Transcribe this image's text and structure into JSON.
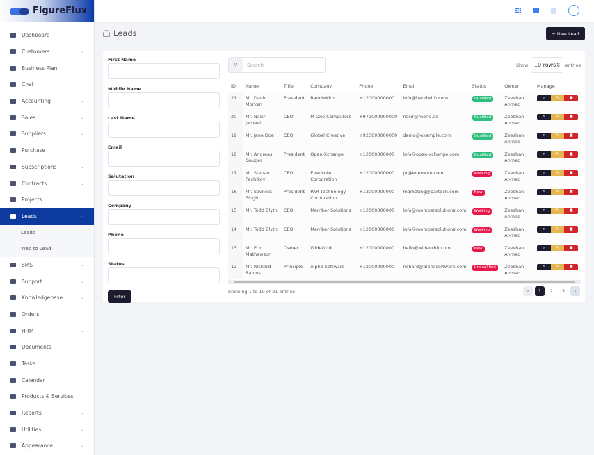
{
  "brand": "FigureFlux",
  "sidebar": {
    "items": [
      {
        "label": "Dashboard",
        "chev": false
      },
      {
        "label": "Customers",
        "chev": true
      },
      {
        "label": "Business Plan",
        "chev": true
      },
      {
        "label": "Chat",
        "chev": false
      },
      {
        "label": "Accounting",
        "chev": true
      },
      {
        "label": "Sales",
        "chev": true
      },
      {
        "label": "Suppliers",
        "chev": true
      },
      {
        "label": "Purchase",
        "chev": true
      },
      {
        "label": "Subscriptions",
        "chev": true
      },
      {
        "label": "Contracts",
        "chev": true
      },
      {
        "label": "Projects",
        "chev": false
      },
      {
        "label": "Leads",
        "chev": true,
        "active": true,
        "sub": [
          "Leads",
          "Web to Lead"
        ]
      },
      {
        "label": "SMS",
        "chev": true
      },
      {
        "label": "Support",
        "chev": true
      },
      {
        "label": "Knowledgebase",
        "chev": true
      },
      {
        "label": "Orders",
        "chev": true
      },
      {
        "label": "HRM",
        "chev": true
      },
      {
        "label": "Documents",
        "chev": false
      },
      {
        "label": "Tasks",
        "chev": false
      },
      {
        "label": "Calendar",
        "chev": false
      },
      {
        "label": "Products & Services",
        "chev": true
      },
      {
        "label": "Reports",
        "chev": true
      },
      {
        "label": "Utilities",
        "chev": true
      },
      {
        "label": "Appearance",
        "chev": true
      }
    ]
  },
  "page": {
    "title": "Leads",
    "new_button": "+ New Lead"
  },
  "filter": {
    "fields": [
      "First Name",
      "Middle Name",
      "Last Name",
      "Email",
      "Salutation",
      "Company",
      "Phone",
      "Status"
    ],
    "button": "Filter"
  },
  "table": {
    "search_placeholder": "Search",
    "show_label": "Show",
    "rows_value": "10 rows",
    "entries_label": "entries",
    "columns": [
      "ID",
      "Name",
      "Title",
      "Company",
      "Phone",
      "Email",
      "Status",
      "Owner",
      "Manage"
    ],
    "rows": [
      [
        "21",
        "Mr. David Morken",
        "President",
        "Bandwidth",
        "+12000000000",
        "info@bandwith.com",
        "Qualified",
        "Zeeshan Ahmad"
      ],
      [
        "20",
        "Mr. Nasir Jameel",
        "CEO",
        "M One Computers",
        "+972000000000",
        "nasir@mone.ae",
        "Qualified",
        "Zeeshan Ahmad"
      ],
      [
        "19",
        "Mr. Jane Doe",
        "CEO",
        "Global Creative",
        "+923000000000",
        "demo@example.com",
        "Qualified",
        "Zeeshan Ahmad"
      ],
      [
        "18",
        "Mr. Andreas Gauger",
        "President",
        "Open-Xchange",
        "+12000000000",
        "info@open-xchange.com",
        "Qualified",
        "Zeeshan Ahmad"
      ],
      [
        "17",
        "Mr. Stepan Pachikov",
        "CEO",
        "EverNote Corporation",
        "+12000000000",
        "pr@evernote.com",
        "Working",
        "Zeeshan Ahmad"
      ],
      [
        "16",
        "Mr. Savneet Singh",
        "President",
        "PAR Technology Corporation",
        "+12000000000",
        "marketing@partech.com",
        "New",
        "Zeeshan Ahmad"
      ],
      [
        "15",
        "Mr. Todd Blyth",
        "CEO",
        "Member Solutions",
        "+12000000000",
        "info@membersolutions.com",
        "Working",
        "Zeeshan Ahmad"
      ],
      [
        "14",
        "Mr. Todd Blyth",
        "CEO",
        "Member Solutions",
        "+12000000000",
        "info@membersolutions.com",
        "Working",
        "Zeeshan Ahmad"
      ],
      [
        "13",
        "Mr. Eric Mathewson",
        "Owner",
        "WideOrbit",
        "+12000000000",
        "hello@wideorbit.com",
        "New",
        "Zeeshan Ahmad"
      ],
      [
        "12",
        "Mr. Richard Rabins",
        "Principle",
        "Alpha Software",
        "+12000000000",
        "richard@alphasoftware.com",
        "Unqualified",
        "Zeeshan Ahmad"
      ]
    ],
    "status_colors": {
      "Qualified": "#2fbf7f",
      "Working": "#e8194a",
      "New": "#e8194a",
      "Unqualified": "#e8194a"
    },
    "info": "Showing 1 to 10 of 21 entries",
    "pages": [
      "1",
      "2",
      "3"
    ],
    "current_page": "1"
  },
  "colors": {
    "accent": "#0d3a9e",
    "dark": "#1c1c2e",
    "edit": "#e6b54f",
    "delete": "#d0262b"
  }
}
